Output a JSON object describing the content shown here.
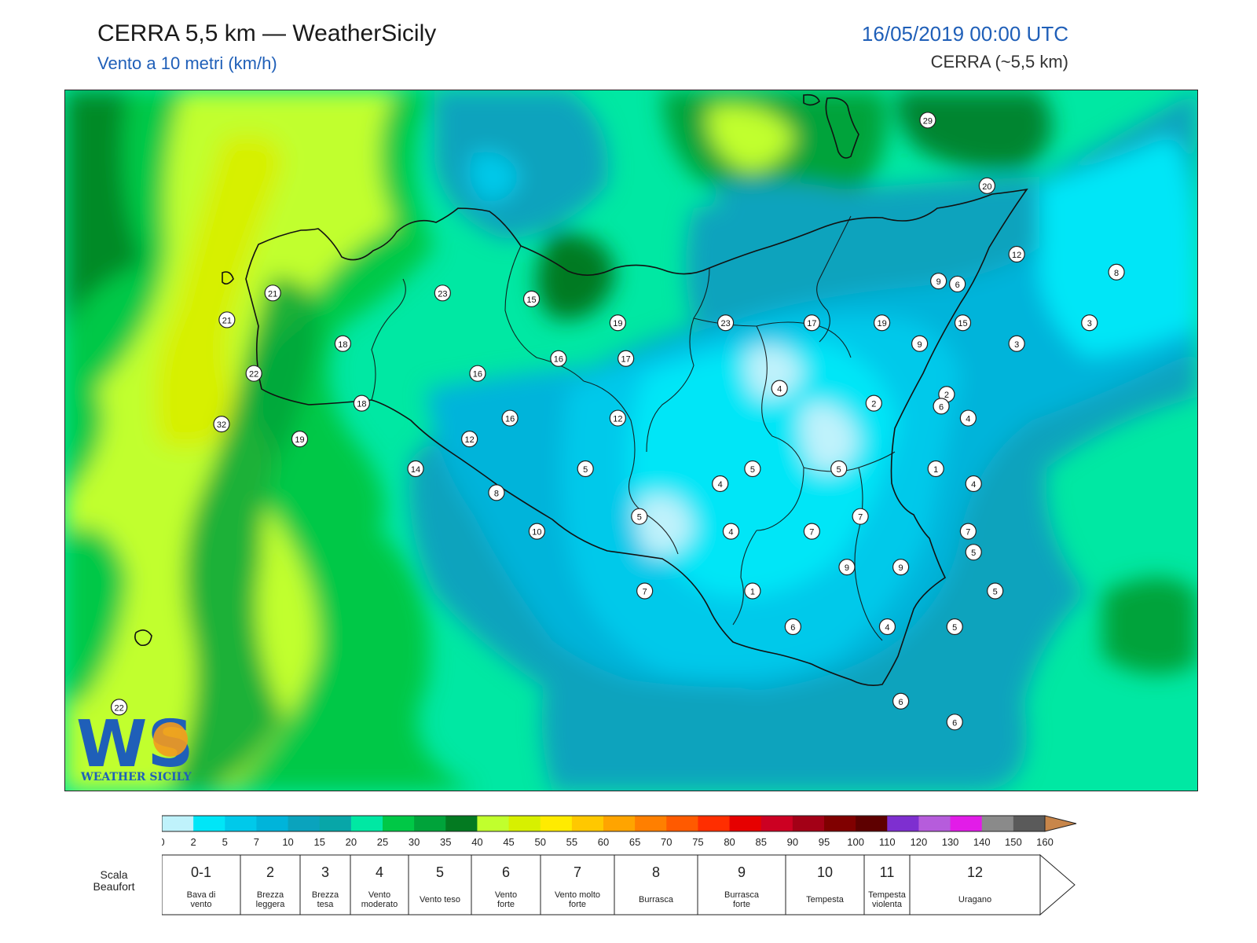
{
  "header": {
    "title": "CERRA 5,5 km — WeatherSicily",
    "subtitle": "Vento a 10 metri (km/h)",
    "datetime": "16/05/2019 00:00 UTC",
    "model_note": "CERRA (~5,5 km)"
  },
  "logo": {
    "mark": "WS",
    "wordmark": "WEATHER SICILY",
    "colors": [
      "#1f5fb8",
      "#f39a1e"
    ]
  },
  "map": {
    "variable_unit": "km/h",
    "stations": [
      {
        "value": 29,
        "lon": 14.95,
        "lat": 38.8
      },
      {
        "value": 20,
        "lon": 15.17,
        "lat": 38.58
      },
      {
        "value": 12,
        "lon": 15.28,
        "lat": 38.35
      },
      {
        "value": 8,
        "lon": 15.65,
        "lat": 38.29
      },
      {
        "value": 9,
        "lon": 14.99,
        "lat": 38.26
      },
      {
        "value": 6,
        "lon": 15.06,
        "lat": 38.25
      },
      {
        "value": 21,
        "lon": 12.52,
        "lat": 38.22
      },
      {
        "value": 23,
        "lon": 13.15,
        "lat": 38.22
      },
      {
        "value": 15,
        "lon": 13.48,
        "lat": 38.2
      },
      {
        "value": 21,
        "lon": 12.35,
        "lat": 38.13
      },
      {
        "value": 19,
        "lon": 13.8,
        "lat": 38.12
      },
      {
        "value": 23,
        "lon": 14.2,
        "lat": 38.12
      },
      {
        "value": 17,
        "lon": 14.52,
        "lat": 38.12
      },
      {
        "value": 19,
        "lon": 14.78,
        "lat": 38.12
      },
      {
        "value": 15,
        "lon": 15.08,
        "lat": 38.12
      },
      {
        "value": 3,
        "lon": 15.55,
        "lat": 38.12
      },
      {
        "value": 18,
        "lon": 12.78,
        "lat": 38.05
      },
      {
        "value": 9,
        "lon": 14.92,
        "lat": 38.05
      },
      {
        "value": 3,
        "lon": 15.28,
        "lat": 38.05
      },
      {
        "value": 16,
        "lon": 13.58,
        "lat": 38.0
      },
      {
        "value": 17,
        "lon": 13.83,
        "lat": 38.0
      },
      {
        "value": 22,
        "lon": 12.45,
        "lat": 37.95
      },
      {
        "value": 16,
        "lon": 13.28,
        "lat": 37.95
      },
      {
        "value": 4,
        "lon": 14.4,
        "lat": 37.9
      },
      {
        "value": 2,
        "lon": 15.02,
        "lat": 37.88
      },
      {
        "value": 18,
        "lon": 12.85,
        "lat": 37.85
      },
      {
        "value": 2,
        "lon": 14.75,
        "lat": 37.85
      },
      {
        "value": 6,
        "lon": 15.0,
        "lat": 37.84
      },
      {
        "value": 16,
        "lon": 13.4,
        "lat": 37.8
      },
      {
        "value": 12,
        "lon": 13.8,
        "lat": 37.8
      },
      {
        "value": 4,
        "lon": 15.1,
        "lat": 37.8
      },
      {
        "value": 32,
        "lon": 12.33,
        "lat": 37.78
      },
      {
        "value": 19,
        "lon": 12.62,
        "lat": 37.73
      },
      {
        "value": 12,
        "lon": 13.25,
        "lat": 37.73
      },
      {
        "value": 14,
        "lon": 13.05,
        "lat": 37.63
      },
      {
        "value": 5,
        "lon": 13.68,
        "lat": 37.63
      },
      {
        "value": 5,
        "lon": 14.3,
        "lat": 37.63
      },
      {
        "value": 5,
        "lon": 14.62,
        "lat": 37.63
      },
      {
        "value": 1,
        "lon": 14.98,
        "lat": 37.63
      },
      {
        "value": 4,
        "lon": 14.18,
        "lat": 37.58
      },
      {
        "value": 4,
        "lon": 15.12,
        "lat": 37.58
      },
      {
        "value": 8,
        "lon": 13.35,
        "lat": 37.55
      },
      {
        "value": 5,
        "lon": 13.88,
        "lat": 37.47
      },
      {
        "value": 7,
        "lon": 14.7,
        "lat": 37.47
      },
      {
        "value": 10,
        "lon": 13.5,
        "lat": 37.42
      },
      {
        "value": 4,
        "lon": 14.22,
        "lat": 37.42
      },
      {
        "value": 7,
        "lon": 14.52,
        "lat": 37.42
      },
      {
        "value": 7,
        "lon": 15.1,
        "lat": 37.42
      },
      {
        "value": 5,
        "lon": 15.12,
        "lat": 37.35
      },
      {
        "value": 9,
        "lon": 14.65,
        "lat": 37.3
      },
      {
        "value": 9,
        "lon": 14.85,
        "lat": 37.3
      },
      {
        "value": 7,
        "lon": 13.9,
        "lat": 37.22
      },
      {
        "value": 1,
        "lon": 14.3,
        "lat": 37.22
      },
      {
        "value": 5,
        "lon": 15.2,
        "lat": 37.22
      },
      {
        "value": 6,
        "lon": 14.45,
        "lat": 37.1
      },
      {
        "value": 4,
        "lon": 14.8,
        "lat": 37.1
      },
      {
        "value": 5,
        "lon": 15.05,
        "lat": 37.1
      },
      {
        "value": 22,
        "lon": 11.95,
        "lat": 36.83
      },
      {
        "value": 6,
        "lon": 14.85,
        "lat": 36.85
      },
      {
        "value": 6,
        "lon": 15.05,
        "lat": 36.78
      }
    ]
  },
  "colorbar": {
    "ticks": [
      "0",
      "2",
      "5",
      "7",
      "10",
      "15",
      "20",
      "25",
      "30",
      "35",
      "40",
      "45",
      "50",
      "55",
      "60",
      "65",
      "70",
      "75",
      "80",
      "85",
      "90",
      "95",
      "100",
      "110",
      "120",
      "130",
      "140",
      "150",
      "160"
    ],
    "colors": [
      "#bff2fb",
      "#00e6f7",
      "#00c9ea",
      "#00b4da",
      "#0aa3bd",
      "#08a6a8",
      "#00e8a3",
      "#00c846",
      "#00a33a",
      "#037a21",
      "#c1ff2d",
      "#d7f000",
      "#ffeb00",
      "#ffc800",
      "#ffa400",
      "#ff7f00",
      "#ff5a00",
      "#ff2e00",
      "#e60000",
      "#cc0022",
      "#a30016",
      "#800000",
      "#5e0000",
      "#7e2fd0",
      "#b65cdc",
      "#e21ce8",
      "#8a8a8a",
      "#5a5a5a",
      "#000000",
      "#8b4a2b",
      "#c8864a"
    ]
  },
  "beaufort": {
    "scale_label": "Scala Beaufort",
    "items": [
      {
        "force": "0-1",
        "label": "Bava di vento"
      },
      {
        "force": "2",
        "label": "Brezza leggera"
      },
      {
        "force": "3",
        "label": "Brezza tesa"
      },
      {
        "force": "4",
        "label": "Vento moderato"
      },
      {
        "force": "5",
        "label": "Vento teso"
      },
      {
        "force": "6",
        "label": "Vento forte"
      },
      {
        "force": "7",
        "label": "Vento molto forte"
      },
      {
        "force": "8",
        "label": "Burrasca"
      },
      {
        "force": "9",
        "label": "Burrasca forte"
      },
      {
        "force": "10",
        "label": "Tempesta"
      },
      {
        "force": "11",
        "label": "Tempesta violenta"
      },
      {
        "force": "12",
        "label": "Uragano"
      }
    ]
  }
}
